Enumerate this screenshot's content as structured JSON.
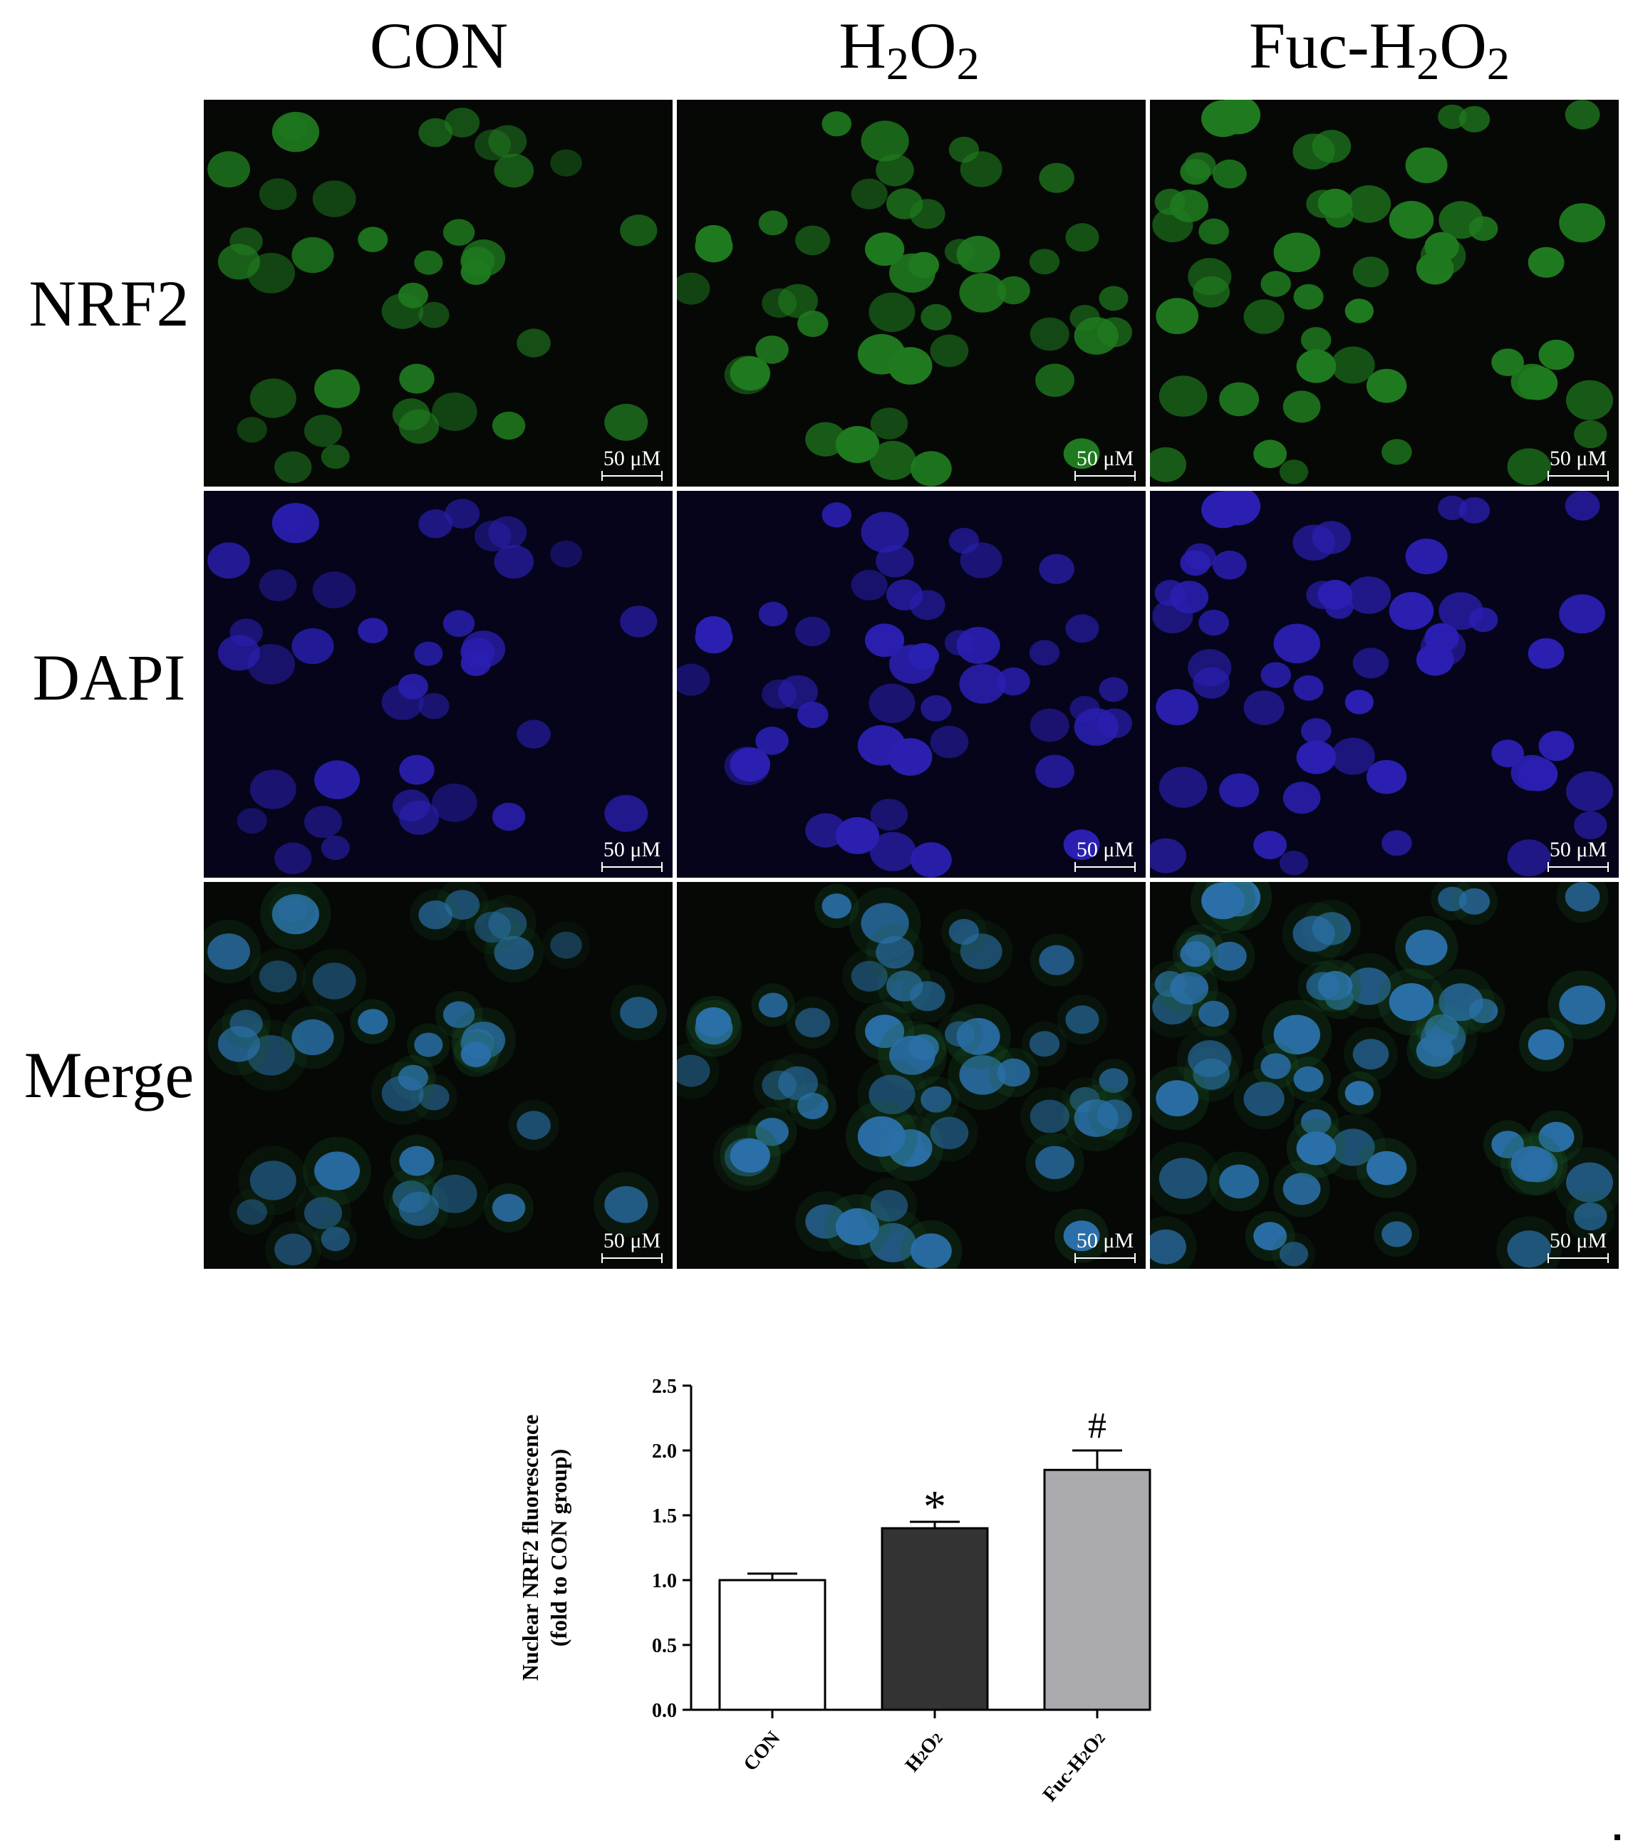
{
  "figure": {
    "column_headers": [
      {
        "main": "CON",
        "sub_parts": []
      },
      {
        "main": "H",
        "sub_parts": [
          "2",
          "O",
          "2"
        ]
      },
      {
        "main": "Fuc-H",
        "sub_parts": [
          "2",
          "O",
          "2"
        ]
      }
    ],
    "row_labels": [
      "NRF2",
      "DAPI",
      "Merge"
    ],
    "scale_bar_label": "50 μM",
    "channel_colors": {
      "NRF2": "#1f7a1f",
      "DAPI": "#2a1fb0",
      "Merge_nucleus": "#2a6fa8",
      "Merge_cytoplasm": "#1a5a2a",
      "background": "#050805"
    }
  },
  "chart_data": {
    "type": "bar",
    "categories": [
      "CON",
      "H2O2",
      "Fuc-H2O2"
    ],
    "category_tick_labels": [
      {
        "main": "CON",
        "sub_parts": []
      },
      {
        "main": "H",
        "sub_parts": [
          "2",
          "O",
          "2"
        ]
      },
      {
        "main": "Fuc-H",
        "sub_parts": [
          "2",
          "O",
          "2"
        ]
      }
    ],
    "values": [
      1.0,
      1.4,
      1.85
    ],
    "errors": [
      0.05,
      0.05,
      0.15
    ],
    "bar_colors": [
      "#ffffff",
      "#333333",
      "#a9a9ae"
    ],
    "significance": [
      "",
      "*",
      "#"
    ],
    "ylabel_line1": "Nuclear NRF2 fluorescence",
    "ylabel_line2": "(fold to CON group)",
    "ylim": [
      0,
      2.5
    ],
    "yticks": [
      "0.0",
      "0.5",
      "1.0",
      "1.5",
      "2.0",
      "2.5"
    ],
    "grid": false
  }
}
